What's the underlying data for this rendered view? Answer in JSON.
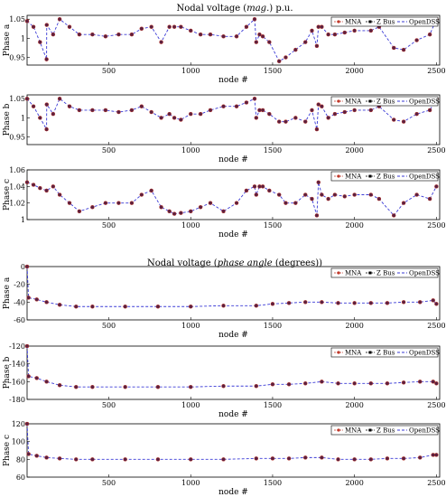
{
  "titles": {
    "mag": {
      "pre": "Nodal voltage (",
      "it": "mag.",
      "post": ") p.u."
    },
    "ang": {
      "pre": "Nodal voltage (",
      "it": "phase angle",
      "post": " (degrees))"
    }
  },
  "legend": {
    "mna": "MNA",
    "zbus": "Z Bus",
    "opendss": "OpenDSS"
  },
  "colors": {
    "mna": "#c0392b",
    "zbus": "#000000",
    "opendss": "#3a3ad6",
    "marker_fill": "#5a2040"
  },
  "xlabel": "node #",
  "chart_data": [
    {
      "type": "scatter",
      "group": "magnitude",
      "ylabel": "Phase a",
      "xlim": [
        1,
        2520
      ],
      "ylim": [
        0.93,
        1.06
      ],
      "xticks": [
        "500",
        "1000",
        "1500",
        "2000",
        "2500"
      ],
      "yticks": [
        "0.95",
        "1",
        "1.05"
      ],
      "x": [
        1,
        40,
        80,
        120,
        121,
        160,
        200,
        260,
        320,
        400,
        480,
        560,
        640,
        700,
        760,
        820,
        870,
        900,
        940,
        1000,
        1060,
        1120,
        1200,
        1280,
        1340,
        1390,
        1400,
        1420,
        1440,
        1480,
        1540,
        1580,
        1640,
        1700,
        1740,
        1770,
        1780,
        1800,
        1840,
        1880,
        1940,
        2000,
        2100,
        2150,
        2240,
        2300,
        2380,
        2460,
        2500
      ],
      "series": [
        {
          "name": "MNA",
          "values": [
            1.045,
            1.03,
            0.99,
            0.945,
            1.035,
            1.01,
            1.05,
            1.03,
            1.01,
            1.01,
            1.005,
            1.01,
            1.01,
            1.025,
            1.03,
            0.99,
            1.03,
            1.03,
            1.03,
            1.02,
            1.01,
            1.01,
            1.005,
            1.005,
            1.03,
            1.05,
            0.99,
            1.01,
            1.005,
            0.99,
            0.94,
            0.95,
            0.97,
            0.99,
            1.02,
            0.98,
            1.03,
            1.03,
            1.01,
            1.01,
            1.015,
            1.02,
            1.02,
            1.03,
            0.975,
            0.97,
            0.995,
            1.01,
            1.05
          ]
        }
      ]
    },
    {
      "type": "scatter",
      "group": "magnitude",
      "ylabel": "Phase b",
      "xlim": [
        1,
        2520
      ],
      "ylim": [
        0.93,
        1.06
      ],
      "xticks": [
        "500",
        "1000",
        "1500",
        "2000",
        "2500"
      ],
      "yticks": [
        "0.95",
        "1",
        "1.05"
      ],
      "x": [
        1,
        40,
        80,
        120,
        121,
        160,
        200,
        260,
        320,
        400,
        480,
        560,
        640,
        700,
        760,
        820,
        870,
        900,
        940,
        1000,
        1060,
        1120,
        1200,
        1280,
        1340,
        1390,
        1400,
        1420,
        1440,
        1480,
        1540,
        1580,
        1640,
        1700,
        1740,
        1770,
        1780,
        1800,
        1840,
        1880,
        1940,
        2000,
        2100,
        2150,
        2240,
        2300,
        2380,
        2460,
        2500
      ],
      "series": [
        {
          "name": "MNA",
          "values": [
            1.05,
            1.03,
            1.0,
            0.97,
            1.035,
            1.01,
            1.05,
            1.03,
            1.02,
            1.02,
            1.02,
            1.015,
            1.02,
            1.03,
            1.015,
            1.0,
            1.01,
            1.0,
            0.995,
            1.01,
            1.01,
            1.02,
            1.03,
            1.03,
            1.04,
            1.05,
            1.0,
            1.02,
            1.02,
            1.01,
            0.99,
            0.99,
            1.0,
            0.99,
            1.02,
            0.97,
            1.035,
            1.03,
            1.0,
            1.01,
            1.015,
            1.02,
            1.02,
            1.03,
            0.995,
            0.99,
            1.01,
            1.02,
            1.05
          ]
        }
      ]
    },
    {
      "type": "scatter",
      "group": "magnitude",
      "ylabel": "Phase c",
      "xlim": [
        1,
        2520
      ],
      "ylim": [
        1.0,
        1.06
      ],
      "xticks": [
        "500",
        "1000",
        "1500",
        "2000",
        "2500"
      ],
      "yticks": [
        "1",
        "1.02",
        "1.04",
        "1.06"
      ],
      "x": [
        1,
        40,
        80,
        120,
        160,
        200,
        260,
        320,
        400,
        480,
        560,
        640,
        700,
        760,
        820,
        870,
        900,
        940,
        1000,
        1060,
        1120,
        1200,
        1280,
        1340,
        1390,
        1400,
        1420,
        1440,
        1480,
        1540,
        1580,
        1640,
        1700,
        1740,
        1770,
        1780,
        1800,
        1840,
        1880,
        1940,
        2000,
        2100,
        2150,
        2240,
        2300,
        2380,
        2460,
        2500
      ],
      "series": [
        {
          "name": "MNA",
          "values": [
            1.045,
            1.042,
            1.038,
            1.035,
            1.04,
            1.03,
            1.02,
            1.01,
            1.015,
            1.02,
            1.02,
            1.02,
            1.03,
            1.035,
            1.015,
            1.01,
            1.007,
            1.008,
            1.01,
            1.015,
            1.02,
            1.01,
            1.02,
            1.035,
            1.04,
            1.03,
            1.04,
            1.04,
            1.035,
            1.03,
            1.02,
            1.02,
            1.03,
            1.025,
            1.005,
            1.045,
            1.03,
            1.025,
            1.03,
            1.028,
            1.03,
            1.03,
            1.025,
            1.005,
            1.02,
            1.03,
            1.025,
            1.04
          ]
        }
      ]
    },
    {
      "type": "scatter",
      "group": "angle",
      "ylabel": "Phase a",
      "xlim": [
        1,
        2520
      ],
      "ylim": [
        -60,
        0
      ],
      "xticks": [
        "500",
        "1000",
        "1500",
        "2000",
        "2500"
      ],
      "yticks": [
        "0",
        "-20",
        "-40",
        "-60"
      ],
      "x": [
        1,
        10,
        60,
        120,
        200,
        300,
        400,
        600,
        800,
        1000,
        1200,
        1400,
        1500,
        1600,
        1700,
        1800,
        1900,
        2000,
        2100,
        2200,
        2300,
        2400,
        2480,
        2500
      ],
      "series": [
        {
          "name": "MNA",
          "values": [
            0,
            -35,
            -37,
            -40,
            -43,
            -45,
            -45,
            -45,
            -45,
            -45,
            -44,
            -44,
            -42,
            -41,
            -40,
            -40,
            -41,
            -41,
            -41,
            -41,
            -40,
            -40,
            -38,
            -42
          ]
        }
      ]
    },
    {
      "type": "scatter",
      "group": "angle",
      "ylabel": "Phase b",
      "xlim": [
        1,
        2520
      ],
      "ylim": [
        -180,
        -120
      ],
      "xticks": [
        "500",
        "1000",
        "1500",
        "2000",
        "2500"
      ],
      "yticks": [
        "-120",
        "-140",
        "-160",
        "-180"
      ],
      "x": [
        1,
        10,
        60,
        120,
        200,
        300,
        400,
        600,
        800,
        1000,
        1200,
        1400,
        1500,
        1600,
        1700,
        1800,
        1900,
        2000,
        2100,
        2200,
        2300,
        2400,
        2480,
        2500
      ],
      "series": [
        {
          "name": "MNA",
          "values": [
            -120,
            -154,
            -156,
            -160,
            -164,
            -166,
            -166,
            -166,
            -166,
            -166,
            -165,
            -165,
            -163,
            -163,
            -162,
            -160,
            -162,
            -162,
            -162,
            -162,
            -161,
            -160,
            -160,
            -162
          ]
        }
      ]
    },
    {
      "type": "scatter",
      "group": "angle",
      "ylabel": "Phase c",
      "xlim": [
        1,
        2520
      ],
      "ylim": [
        60,
        120
      ],
      "xticks": [
        "500",
        "1000",
        "1500",
        "2000",
        "2500"
      ],
      "yticks": [
        "60",
        "80",
        "100",
        "120"
      ],
      "x": [
        1,
        10,
        60,
        120,
        200,
        300,
        400,
        600,
        800,
        1000,
        1200,
        1400,
        1500,
        1600,
        1700,
        1800,
        1900,
        2000,
        2100,
        2200,
        2300,
        2400,
        2480,
        2500
      ],
      "series": [
        {
          "name": "MNA",
          "values": [
            120,
            86,
            84,
            82,
            81,
            80,
            80,
            80,
            80,
            80,
            80,
            81,
            81,
            81,
            82,
            82,
            80,
            80,
            80,
            81,
            81,
            82,
            85,
            85
          ]
        }
      ]
    }
  ]
}
